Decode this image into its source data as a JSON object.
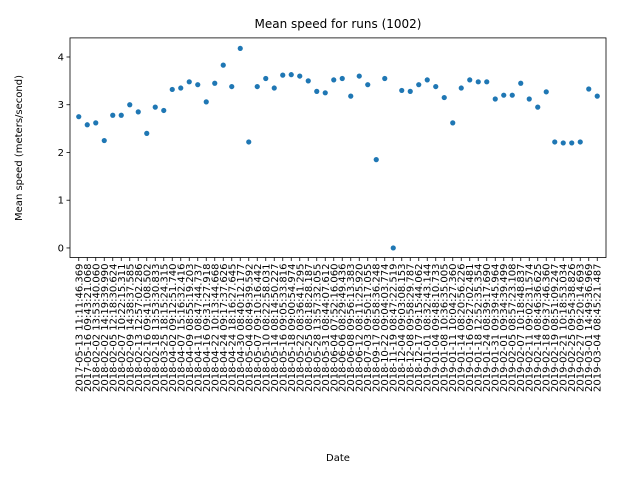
{
  "chart_data": {
    "type": "scatter",
    "title": "Mean speed for runs (1002)",
    "x_label": "Date",
    "y_label": "Mean speed (meters/second)",
    "categories": [
      "2017-05-13 11:11:46.369",
      "2017-05-16 09:43:21.068",
      "2018-02-02 13:53:40.060",
      "2018-02-02 14:19:39.990",
      "2018-02-05 12:18:30.624",
      "2018-02-07 10:22:15.311",
      "2018-02-09 14:38:37.585",
      "2018-02-13 12:57:02.286",
      "2018-02-16 09:41:08.502",
      "2018-02-18 13:53:30.833",
      "2018-03-25 18:15:24.315",
      "2018-04-02 09:12:51.740",
      "2018-04-07 15:16:32.416",
      "2018-04-09 08:55:19.203",
      "2018-04-11 08:47:44.737",
      "2018-04-16 09:31:27.918",
      "2018-04-22 10:13:44.668",
      "2018-04-24 09:17:37.626",
      "2018-04-24 18:16:27.645",
      "2018-04-30 08:40:12.177",
      "2018-05-04 08:49:39.592",
      "2018-05-07 09:10:16.442",
      "2018-05-10 08:22:58.031",
      "2018-05-14 08:14:50.227",
      "2018-05-16 09:05:33.816",
      "2018-05-18 09:00:54.974",
      "2018-05-22 08:36:41.295",
      "2018-05-25 08:18:28.187",
      "2018-05-28 13:57:32.055",
      "2018-05-31 08:44:07.612",
      "2018-06-04 07:52:16.060",
      "2018-06-06 08:29:49.436",
      "2018-06-08 09:56:13.383",
      "2018-06-12 08:11:25.920",
      "2018-07-03 09:50:17.055",
      "2018-09-17 08:58:36.248",
      "2018-10-22 09:04:03.774",
      "2018-11-19 08:47:22.519",
      "2018-12-04 09:03:08.153",
      "2018-12-08 09:58:29.787",
      "2018-12-17 09:15:44.062",
      "2019-01-01 08:32:43.144",
      "2019-01-04 09:48:10.733",
      "2019-01-08 10:36:35.005",
      "2019-01-11 10:04:27.360",
      "2019-01-14 08:20:56.226",
      "2019-01-16 09:27:02.481",
      "2019-01-18 12:52:35.354",
      "2019-01-24 08:39:17.690",
      "2019-01-31 09:39:45.964",
      "2019-02-01 09:34:39.499",
      "2019-02-05 08:57:23.108",
      "2019-02-07 10:18:48.837",
      "2019-02-11 09:02:31.574",
      "2019-02-14 08:46:36.625",
      "2019-02-18 09:37:46.360",
      "2019-02-19 08:51:09.247",
      "2019-02-21 10:18:53.034",
      "2019-02-25 09:54:38.826",
      "2019-02-27 09:20:14.693",
      "2019-03-01 14:49:36.969",
      "2019-03-04 08:45:21.487"
    ],
    "values": [
      2.75,
      2.58,
      2.62,
      2.25,
      2.78,
      2.78,
      3.0,
      2.85,
      2.4,
      2.95,
      2.88,
      3.32,
      3.35,
      3.48,
      3.42,
      3.06,
      3.45,
      3.83,
      3.38,
      4.18,
      2.22,
      3.38,
      3.55,
      3.35,
      3.62,
      3.63,
      3.6,
      3.5,
      3.28,
      3.25,
      3.52,
      3.55,
      3.18,
      3.6,
      3.42,
      1.85,
      3.55,
      0.0,
      3.3,
      3.28,
      3.42,
      3.52,
      3.38,
      3.15,
      2.62,
      3.35,
      3.52,
      3.48,
      3.48,
      3.12,
      3.2,
      3.2,
      3.45,
      3.12,
      2.95,
      3.27,
      2.22,
      2.2,
      2.2,
      2.22,
      3.33,
      3.18
    ],
    "color": "#1f77b4",
    "ylim": [
      -0.2,
      4.4
    ],
    "yticks": [
      0,
      1,
      2,
      3,
      4
    ]
  }
}
